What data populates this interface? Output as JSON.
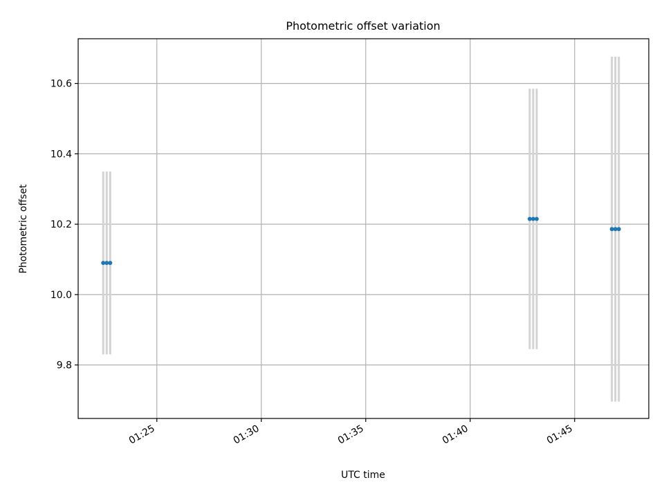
{
  "chart_data": {
    "type": "scatter",
    "title": "Photometric offset variation",
    "xlabel": "UTC time",
    "ylabel": "Photometric offset",
    "xlim": [
      "01:21:14",
      "01:48:33"
    ],
    "ylim": [
      9.648,
      10.727
    ],
    "x_ticks": [
      "01:25",
      "01:30",
      "01:35",
      "01:40",
      "01:45"
    ],
    "y_ticks": [
      "9.8",
      "10.0",
      "10.2",
      "10.4",
      "10.6"
    ],
    "grid": true,
    "series": [
      {
        "points": [
          {
            "x": "01:22:26",
            "y": 10.09,
            "err": 0.26
          },
          {
            "x": "01:22:36",
            "y": 10.09,
            "err": 0.26
          },
          {
            "x": "01:22:46",
            "y": 10.09,
            "err": 0.26
          },
          {
            "x": "01:42:51",
            "y": 10.215,
            "err": 0.37
          },
          {
            "x": "01:43:01",
            "y": 10.215,
            "err": 0.37
          },
          {
            "x": "01:43:11",
            "y": 10.215,
            "err": 0.37
          },
          {
            "x": "01:46:47",
            "y": 10.186,
            "err": 0.49
          },
          {
            "x": "01:46:57",
            "y": 10.186,
            "err": 0.49
          },
          {
            "x": "01:47:07",
            "y": 10.186,
            "err": 0.49
          }
        ]
      }
    ],
    "colors": {
      "marker": "#1f77b4",
      "errorbar": "#d3d3d3",
      "grid": "#b0b0b0",
      "axes": "#000000"
    }
  }
}
